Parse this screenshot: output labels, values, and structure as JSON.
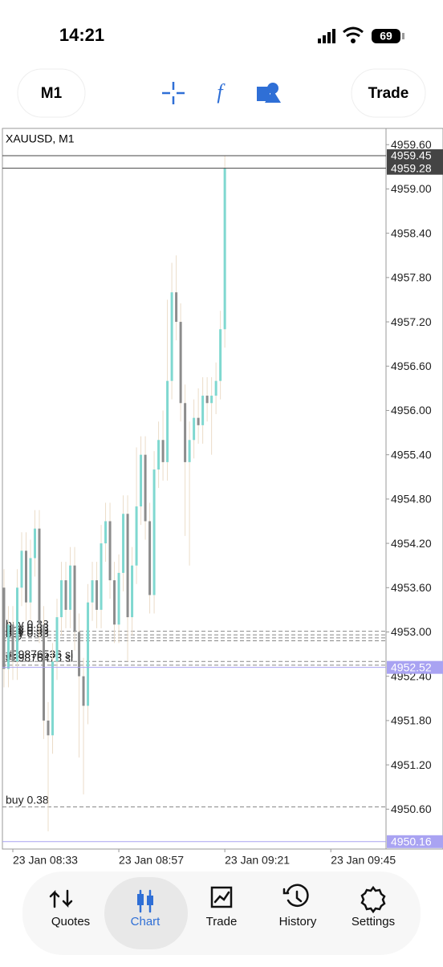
{
  "status": {
    "time": "14:21",
    "battery": "69"
  },
  "toolbar": {
    "timeframe": "M1",
    "trade": "Trade"
  },
  "chart_data": {
    "type": "candlestick",
    "title": "XAUUSD, M1",
    "open": [
      4953.6,
      4952.5,
      4953.1,
      4952.6,
      4953.6,
      4954.1,
      4953.4,
      4954.0,
      4954.4,
      4953.1,
      4951.8,
      4951.6,
      4952.6,
      4953.2,
      4953.7,
      4953.3,
      4953.9,
      4953.0,
      4952.4,
      4952.0,
      4953.4,
      4953.7,
      4953.3,
      4954.2,
      4954.5,
      4953.7,
      4953.1,
      4953.8,
      4954.6,
      4953.2,
      4953.9,
      4954.7,
      4955.4,
      4954.5,
      4953.5,
      4955.2,
      4955.6,
      4955.3,
      4956.4,
      4957.6,
      4957.2,
      4956.1,
      4955.3,
      4955.6,
      4955.9,
      4955.8,
      4956.2,
      4956.1,
      4956.2,
      4956.4,
      4957.1
    ],
    "high": [
      4953.85,
      4953.35,
      4953.35,
      4953.85,
      4954.35,
      4954.35,
      4954.25,
      4954.65,
      4954.65,
      4953.35,
      4952.05,
      4952.85,
      4953.45,
      4953.95,
      4953.95,
      4954.15,
      4954.15,
      4953.25,
      4952.65,
      4953.65,
      4953.95,
      4953.95,
      4954.45,
      4954.75,
      4954.75,
      4953.95,
      4954.05,
      4954.85,
      4954.85,
      4954.15,
      4955.5,
      4955.65,
      4955.65,
      4954.75,
      4955.45,
      4955.85,
      4956.0,
      4957.5,
      4958.0,
      4958.1,
      4957.45,
      4956.35,
      4955.85,
      4956.15,
      4956.3,
      4956.45,
      4956.45,
      4956.45,
      4956.65,
      4957.35,
      4959.45
    ],
    "low": [
      4952.25,
      4952.25,
      4952.35,
      4952.35,
      4953.35,
      4953.15,
      4953.15,
      4953.75,
      4952.85,
      4951.55,
      4950.3,
      4951.35,
      4952.35,
      4952.95,
      4953.05,
      4953.05,
      4952.75,
      4951.3,
      4950.8,
      4951.75,
      4953.15,
      4953.05,
      4953.05,
      4953.95,
      4953.45,
      4952.85,
      4952.85,
      4953.55,
      4952.6,
      4952.95,
      4953.65,
      4954.45,
      4954.25,
      4953.25,
      4953.25,
      4954.95,
      4955.05,
      4955.05,
      4956.15,
      4956.95,
      4955.85,
      4954.3,
      4953.9,
      4955.35,
      4955.55,
      4955.55,
      4955.85,
      4955.4,
      4955.95,
      4956.15,
      4956.85
    ],
    "close": [
      4952.5,
      4953.1,
      4952.6,
      4953.6,
      4954.1,
      4953.4,
      4954.0,
      4954.4,
      4953.1,
      4951.8,
      4951.6,
      4952.6,
      4953.2,
      4953.7,
      4953.3,
      4953.9,
      4953.0,
      4952.4,
      4952.0,
      4953.4,
      4953.7,
      4953.3,
      4954.2,
      4954.5,
      4953.7,
      4953.1,
      4953.8,
      4954.6,
      4953.2,
      4953.9,
      4954.7,
      4955.4,
      4954.5,
      4953.5,
      4955.2,
      4955.6,
      4955.3,
      4956.4,
      4957.6,
      4957.2,
      4956.1,
      4955.3,
      4955.6,
      4955.9,
      4955.8,
      4956.2,
      4956.1,
      4956.2,
      4956.4,
      4957.1,
      4959.28
    ],
    "up_color": "#7fd8d0",
    "down_color": "#8c8c8c",
    "wick_color": "#ebdcc8",
    "xlim": [
      -0.36,
      86.5
    ],
    "xticks": [
      {
        "value": 2,
        "label": "23 Jan 08:33"
      },
      {
        "value": 26,
        "label": "23 Jan 08:57"
      },
      {
        "value": 50,
        "label": "23 Jan 09:21"
      },
      {
        "value": 74,
        "label": "23 Jan 09:45"
      }
    ],
    "ylim": [
      4950.06,
      4959.82
    ],
    "yticks": [
      {
        "value": 4959.6,
        "label": "4959.60"
      },
      {
        "value": 4959.0,
        "label": "4959.00"
      },
      {
        "value": 4958.4,
        "label": "4958.40"
      },
      {
        "value": 4957.8,
        "label": "4957.80"
      },
      {
        "value": 4957.2,
        "label": "4957.20"
      },
      {
        "value": 4956.6,
        "label": "4956.60"
      },
      {
        "value": 4956.0,
        "label": "4956.00"
      },
      {
        "value": 4955.4,
        "label": "4955.40"
      },
      {
        "value": 4954.8,
        "label": "4954.80"
      },
      {
        "value": 4954.2,
        "label": "4954.20"
      },
      {
        "value": 4953.6,
        "label": "4953.60"
      },
      {
        "value": 4953.0,
        "label": "4953.00"
      },
      {
        "value": 4952.4,
        "label": "4952.40"
      },
      {
        "value": 4951.8,
        "label": "4951.80"
      },
      {
        "value": 4951.2,
        "label": "4951.20"
      },
      {
        "value": 4950.6,
        "label": "4950.60"
      }
    ],
    "price_lines": [
      {
        "value": 4959.45,
        "color": "#444444"
      },
      {
        "value": 4959.28,
        "color": "#444444"
      },
      {
        "value": 4952.52,
        "color": "#a9a3f2"
      },
      {
        "value": 4950.16,
        "color": "#a9a3f2"
      }
    ],
    "order_lines": [
      {
        "value": 4953.01,
        "text": "buy 0.38"
      },
      {
        "value": 4952.96,
        "text": "buy 0.38"
      },
      {
        "value": 4952.92,
        "text": "buy 0.38"
      },
      {
        "value": 4952.88,
        "text": "buy 0.38"
      },
      {
        "value": 4952.6,
        "text": "#29876536 sl"
      },
      {
        "value": 4952.55,
        "text": "#29876478 sl"
      },
      {
        "value": 4950.63,
        "text": "buy 0.38"
      }
    ]
  },
  "nav": {
    "items": [
      "Quotes",
      "Chart",
      "Trade",
      "History",
      "Settings"
    ],
    "active": 1
  }
}
